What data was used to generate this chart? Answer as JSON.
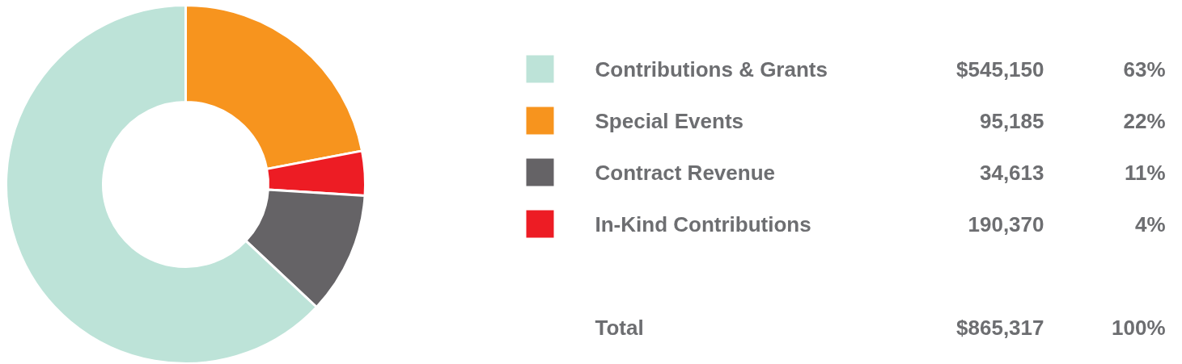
{
  "chart_data": {
    "type": "donut",
    "categories": [
      "Special Events",
      "In-Kind Contributions",
      "Contract Revenue",
      "Contributions & Grants"
    ],
    "values": [
      22,
      4,
      11,
      63
    ],
    "colors": [
      "#f7941e",
      "#ed1c24",
      "#656366",
      "#bde3d8"
    ],
    "value_labels": [
      "22%",
      "4%",
      "11%",
      "63%"
    ],
    "legend": "right",
    "annotations": [
      "$545,150",
      "95,185",
      "34,613",
      "190,370",
      "Total",
      "$865,317",
      "100%"
    ]
  }
}
